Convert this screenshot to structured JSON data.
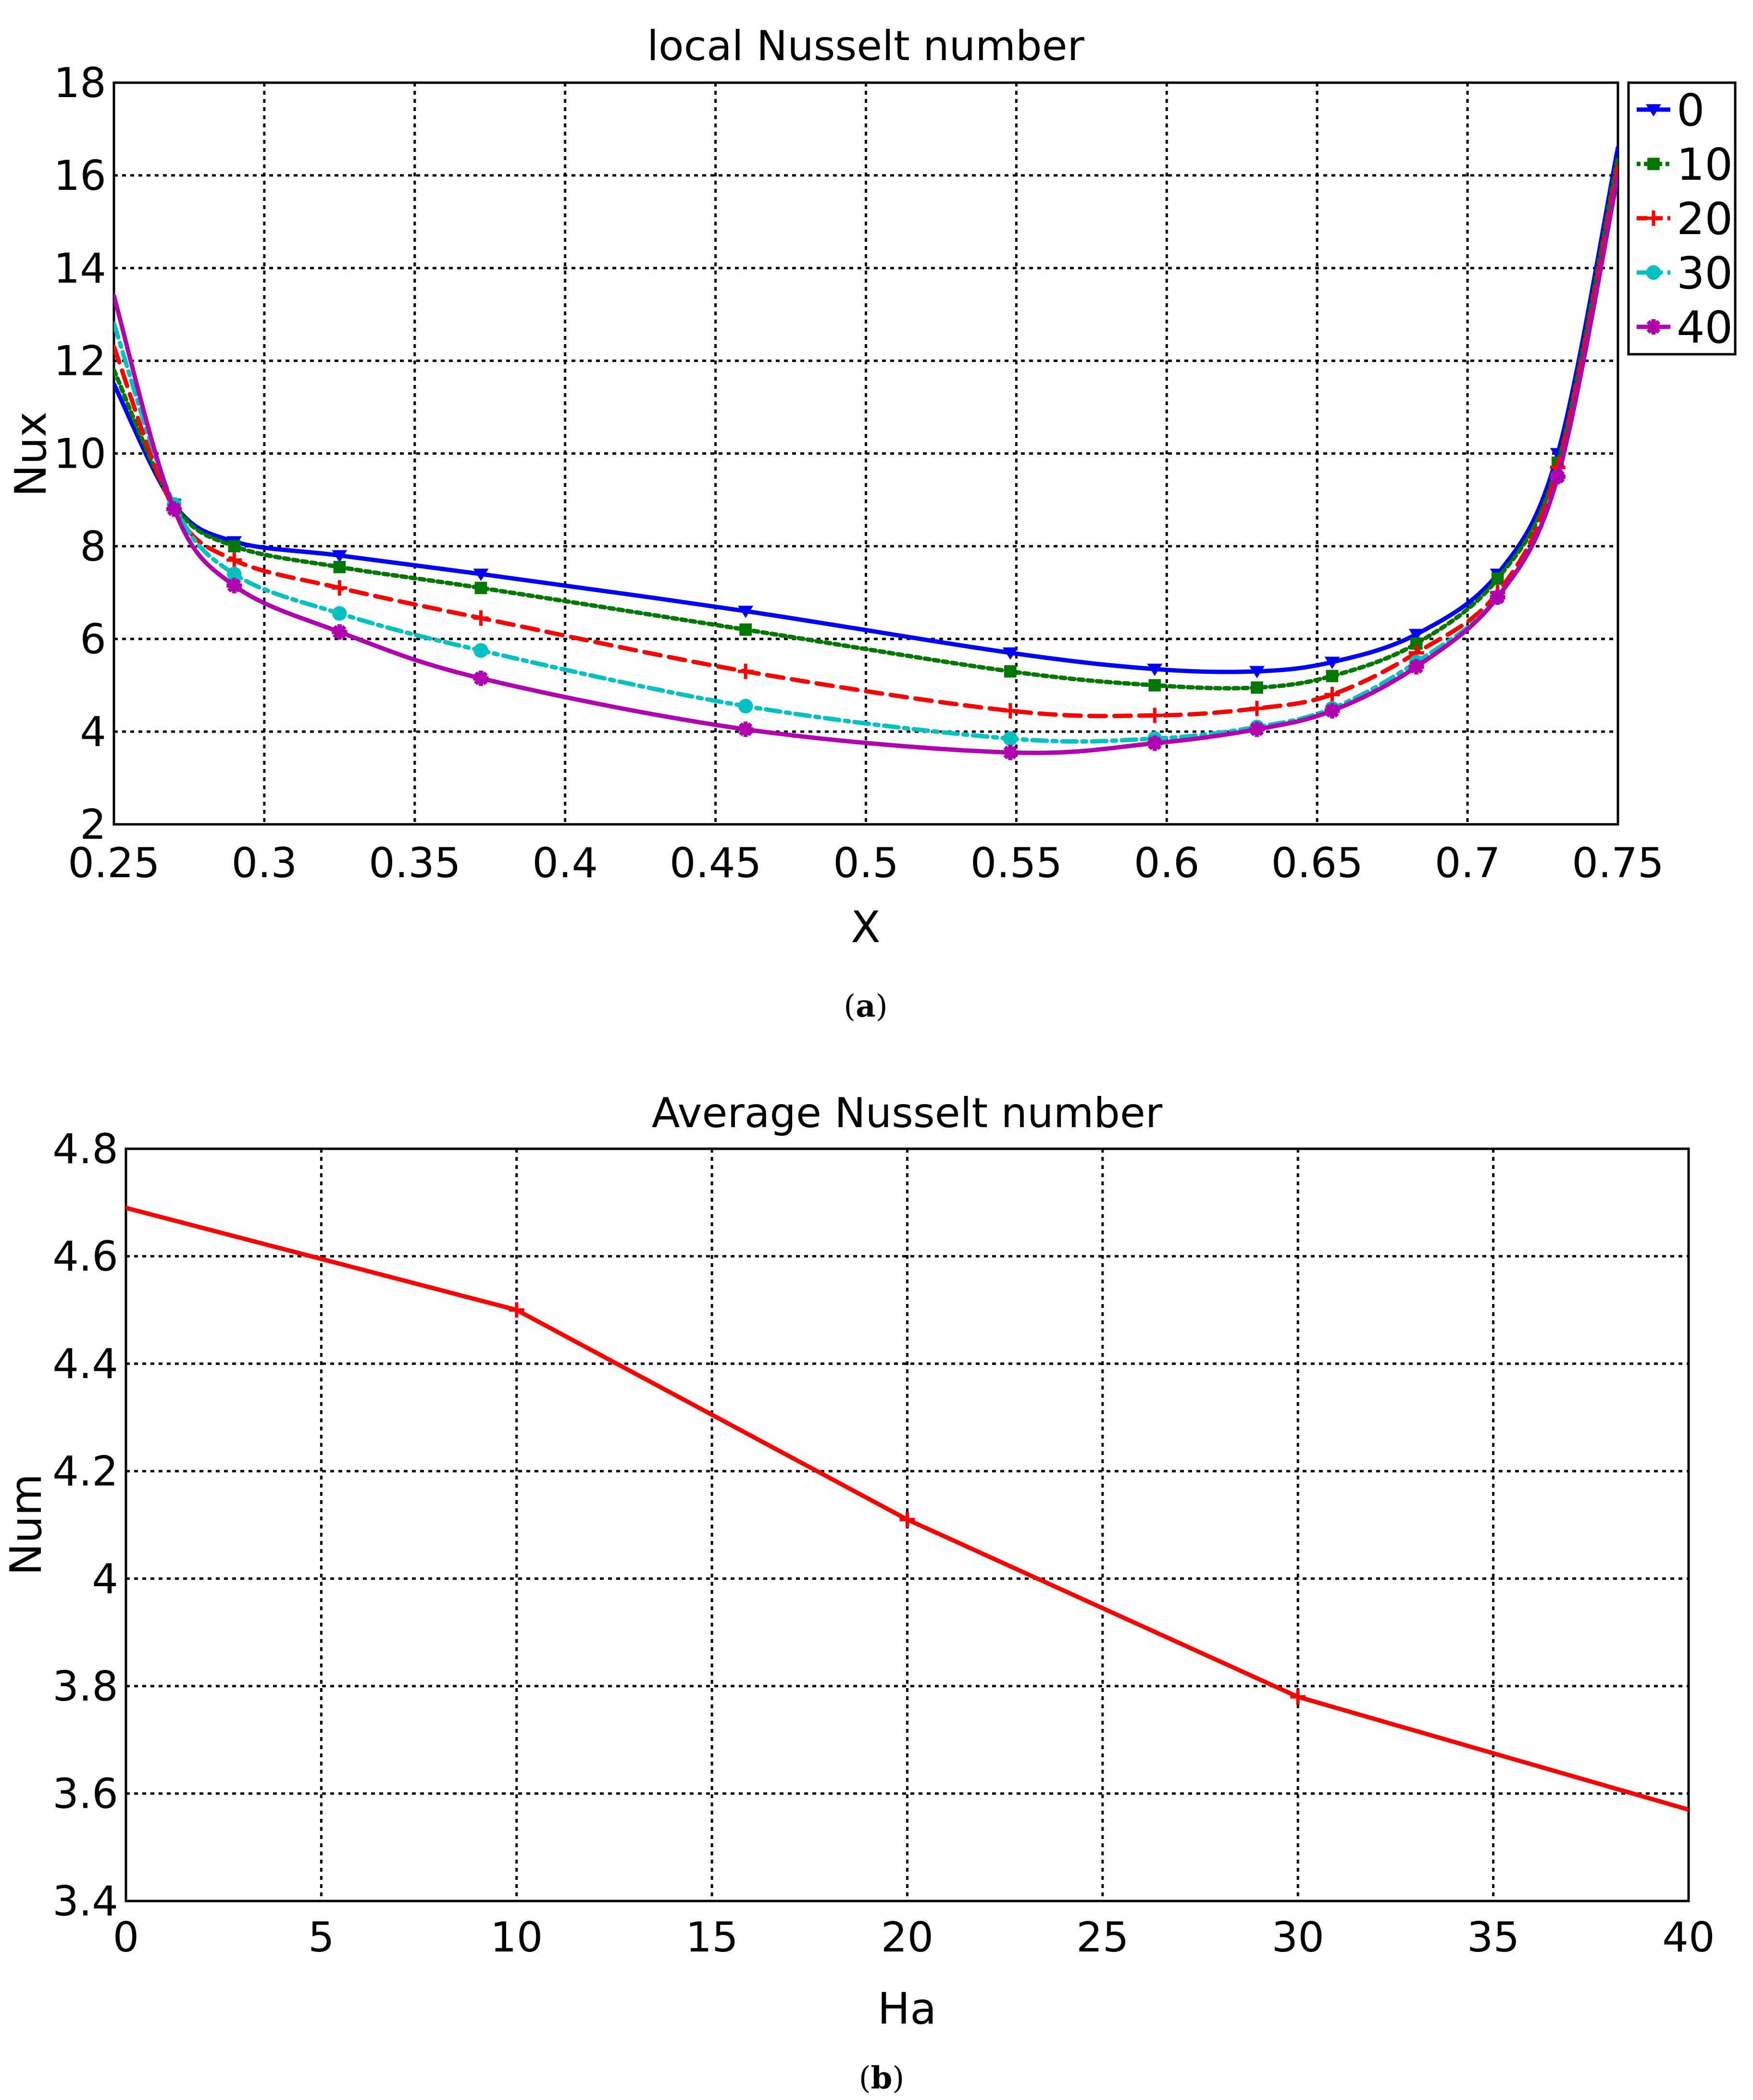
{
  "chart_data": [
    {
      "type": "line",
      "title": "local Nusselt number",
      "xlabel": "X",
      "ylabel": "Nux",
      "xlim": [
        0.25,
        0.75
      ],
      "ylim": [
        2,
        18
      ],
      "xticks": [
        "0.25",
        "0.3",
        "0.35",
        "0.4",
        "0.45",
        "0.5",
        "0.55",
        "0.6",
        "0.65",
        "0.7",
        "0.75"
      ],
      "yticks": [
        "2",
        "4",
        "6",
        "8",
        "10",
        "12",
        "14",
        "16",
        "18"
      ],
      "grid": true,
      "legend_position": "top-right outside",
      "caption_letter": "a",
      "series": [
        {
          "name": "0",
          "color": "#0000ff",
          "dash": "solid",
          "marker": "triangle-down",
          "x": [
            0.25,
            0.27,
            0.29,
            0.325,
            0.372,
            0.46,
            0.548,
            0.596,
            0.63,
            0.655,
            0.683,
            0.71,
            0.73,
            0.75
          ],
          "y": [
            11.5,
            8.9,
            8.1,
            7.8,
            7.4,
            6.6,
            5.7,
            5.35,
            5.3,
            5.5,
            6.1,
            7.4,
            10.0,
            16.6
          ]
        },
        {
          "name": "10",
          "color": "#007800",
          "dash": "dotted",
          "marker": "square",
          "x": [
            0.25,
            0.27,
            0.29,
            0.325,
            0.372,
            0.46,
            0.548,
            0.596,
            0.63,
            0.655,
            0.683,
            0.71,
            0.73,
            0.75
          ],
          "y": [
            11.8,
            8.9,
            8.0,
            7.55,
            7.1,
            6.2,
            5.3,
            5.0,
            4.95,
            5.2,
            5.9,
            7.3,
            9.8,
            16.4
          ]
        },
        {
          "name": "20",
          "color": "#ff0000",
          "dash": "dashed",
          "marker": "plus",
          "x": [
            0.25,
            0.27,
            0.29,
            0.325,
            0.372,
            0.46,
            0.548,
            0.596,
            0.63,
            0.655,
            0.683,
            0.71,
            0.73,
            0.75
          ],
          "y": [
            12.3,
            8.8,
            7.7,
            7.1,
            6.45,
            5.3,
            4.45,
            4.35,
            4.5,
            4.8,
            5.7,
            7.0,
            9.7,
            16.2
          ]
        },
        {
          "name": "30",
          "color": "#00c0c0",
          "dash": "dashdot",
          "marker": "circle",
          "x": [
            0.25,
            0.27,
            0.29,
            0.325,
            0.372,
            0.46,
            0.548,
            0.596,
            0.63,
            0.655,
            0.683,
            0.71,
            0.73,
            0.75
          ],
          "y": [
            12.8,
            8.9,
            7.4,
            6.55,
            5.75,
            4.55,
            3.85,
            3.85,
            4.1,
            4.5,
            5.5,
            6.9,
            9.5,
            16.0
          ]
        },
        {
          "name": "40",
          "color": "#b000b0",
          "dash": "solid",
          "marker": "star",
          "x": [
            0.25,
            0.27,
            0.29,
            0.325,
            0.372,
            0.46,
            0.548,
            0.596,
            0.63,
            0.655,
            0.683,
            0.71,
            0.73,
            0.75
          ],
          "y": [
            13.4,
            8.8,
            7.15,
            6.15,
            5.15,
            4.05,
            3.55,
            3.75,
            4.05,
            4.45,
            5.4,
            6.9,
            9.5,
            16.0
          ]
        }
      ]
    },
    {
      "type": "line",
      "title": "Average Nusselt number",
      "xlabel": "Ha",
      "ylabel": "Num",
      "xlim": [
        0,
        40
      ],
      "ylim": [
        3.4,
        4.8
      ],
      "xticks": [
        "0",
        "5",
        "10",
        "15",
        "20",
        "25",
        "30",
        "35",
        "40"
      ],
      "yticks": [
        "3.4",
        "3.6",
        "3.8",
        "4",
        "4.2",
        "4.4",
        "4.6",
        "4.8"
      ],
      "grid": true,
      "caption_letter": "b",
      "series": [
        {
          "name": "Num",
          "color": "#ff0000",
          "dash": "solid",
          "marker": "plus",
          "x": [
            0,
            10,
            20,
            30,
            40
          ],
          "y": [
            4.69,
            4.5,
            4.11,
            3.78,
            3.57
          ]
        }
      ]
    }
  ]
}
